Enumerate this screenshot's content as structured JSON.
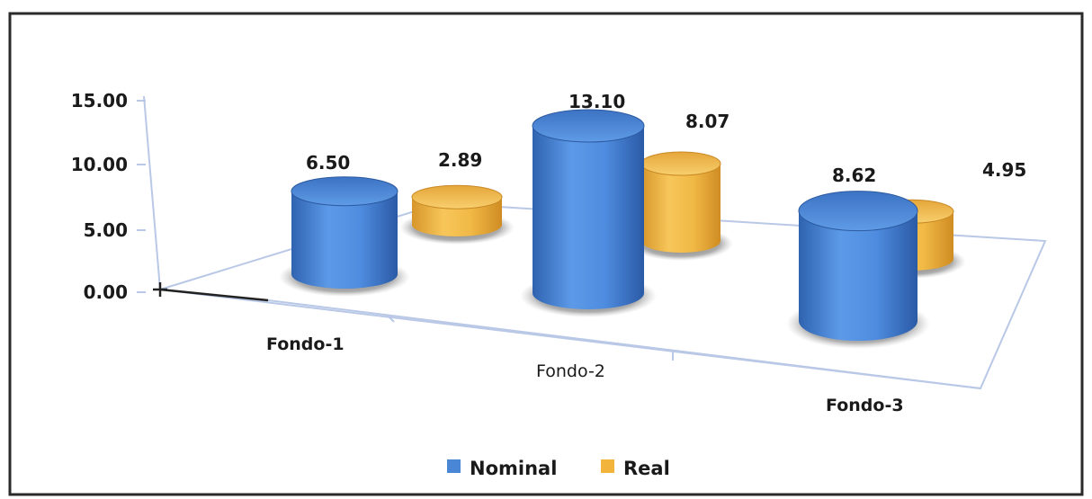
{
  "chart_data": {
    "type": "bar",
    "title": "",
    "xlabel": "",
    "ylabel": "",
    "categories": [
      "Fondo-1",
      "Fondo-2",
      "Fondo-3"
    ],
    "series": [
      {
        "name": "Nominal",
        "values": [
          6.5,
          13.1,
          8.62
        ],
        "labels": [
          "6.50",
          "13.10",
          "8.62"
        ],
        "color": "#4a86d6"
      },
      {
        "name": "Real",
        "values": [
          2.89,
          8.07,
          4.95
        ],
        "labels": [
          "2.89",
          "8.07",
          "4.95"
        ],
        "color": "#f2b43a"
      }
    ],
    "yticks": [
      "15.00",
      "10.00",
      "5.00",
      "0.00"
    ],
    "ylim": [
      0,
      15
    ],
    "grid": false,
    "legend_position": "bottom",
    "shape": "3d-cylinder"
  }
}
